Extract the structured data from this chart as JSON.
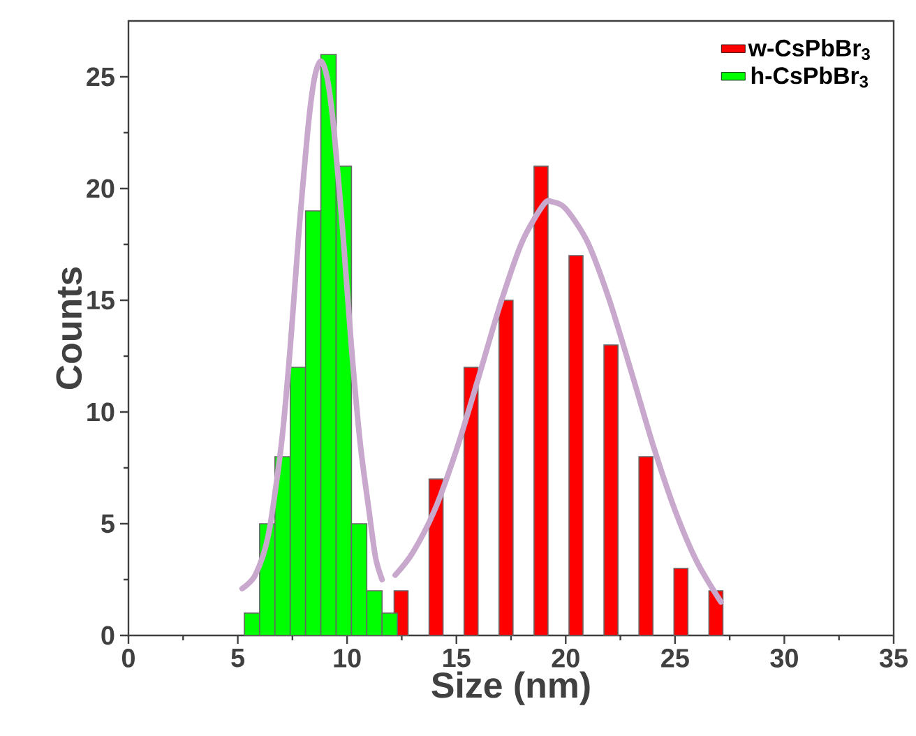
{
  "chart_data": {
    "type": "histogram",
    "xlabel": "Size (nm)",
    "ylabel": "Counts",
    "xlim": [
      0,
      35
    ],
    "xticks": [
      0,
      5,
      10,
      15,
      20,
      25,
      30,
      35
    ],
    "ylim": [
      0,
      27.5
    ],
    "yticks": [
      0,
      5,
      10,
      15,
      20,
      25
    ],
    "legend": "top right",
    "series": [
      {
        "name": "w-CsPbBr$_{3}$",
        "type": "bar",
        "color": "#ff0000",
        "x": [
          12.47,
          14.07,
          15.67,
          17.27,
          18.87,
          20.47,
          22.07,
          23.67,
          25.27,
          26.87
        ],
        "values": [
          2,
          7,
          12,
          15,
          21,
          17,
          13,
          8,
          3,
          2
        ]
      },
      {
        "name": "h-CsPbBr$_{3}$",
        "color": "#00ff00",
        "bins": [
          5.3,
          6.0,
          6.7,
          7.4,
          8.1,
          8.8,
          9.5,
          10.2,
          10.9,
          11.6,
          12.3
        ],
        "values": [
          1,
          5,
          8,
          12,
          19,
          26,
          21,
          5,
          2,
          1
        ]
      },
      {
        "type": "line",
        "color": "#c8a8cc",
        "x": [
          5.2,
          5.8,
          6.4,
          7.0,
          7.4,
          7.8,
          8.2,
          8.5,
          8.8,
          9.1,
          9.4,
          9.8,
          10.2,
          10.6,
          11.0,
          11.3,
          11.6
        ],
        "values": [
          2.1,
          2.7,
          4.5,
          8.6,
          12.9,
          18.1,
          22.6,
          24.9,
          25.7,
          24.9,
          22.6,
          18.1,
          12.9,
          8.6,
          5.6,
          3.5,
          2.5
        ]
      },
      {
        "type": "line",
        "color": "#c8a8cc",
        "x": [
          12.2,
          13,
          14,
          15,
          16,
          17,
          18,
          19,
          19.4,
          20,
          21,
          22,
          23,
          24,
          25,
          26,
          27.1
        ],
        "values": [
          2.7,
          3.7,
          5.6,
          8.3,
          11.5,
          14.8,
          17.6,
          19.3,
          19.4,
          19.1,
          17.6,
          15.0,
          11.8,
          8.5,
          5.6,
          3.3,
          1.5
        ]
      }
    ]
  }
}
